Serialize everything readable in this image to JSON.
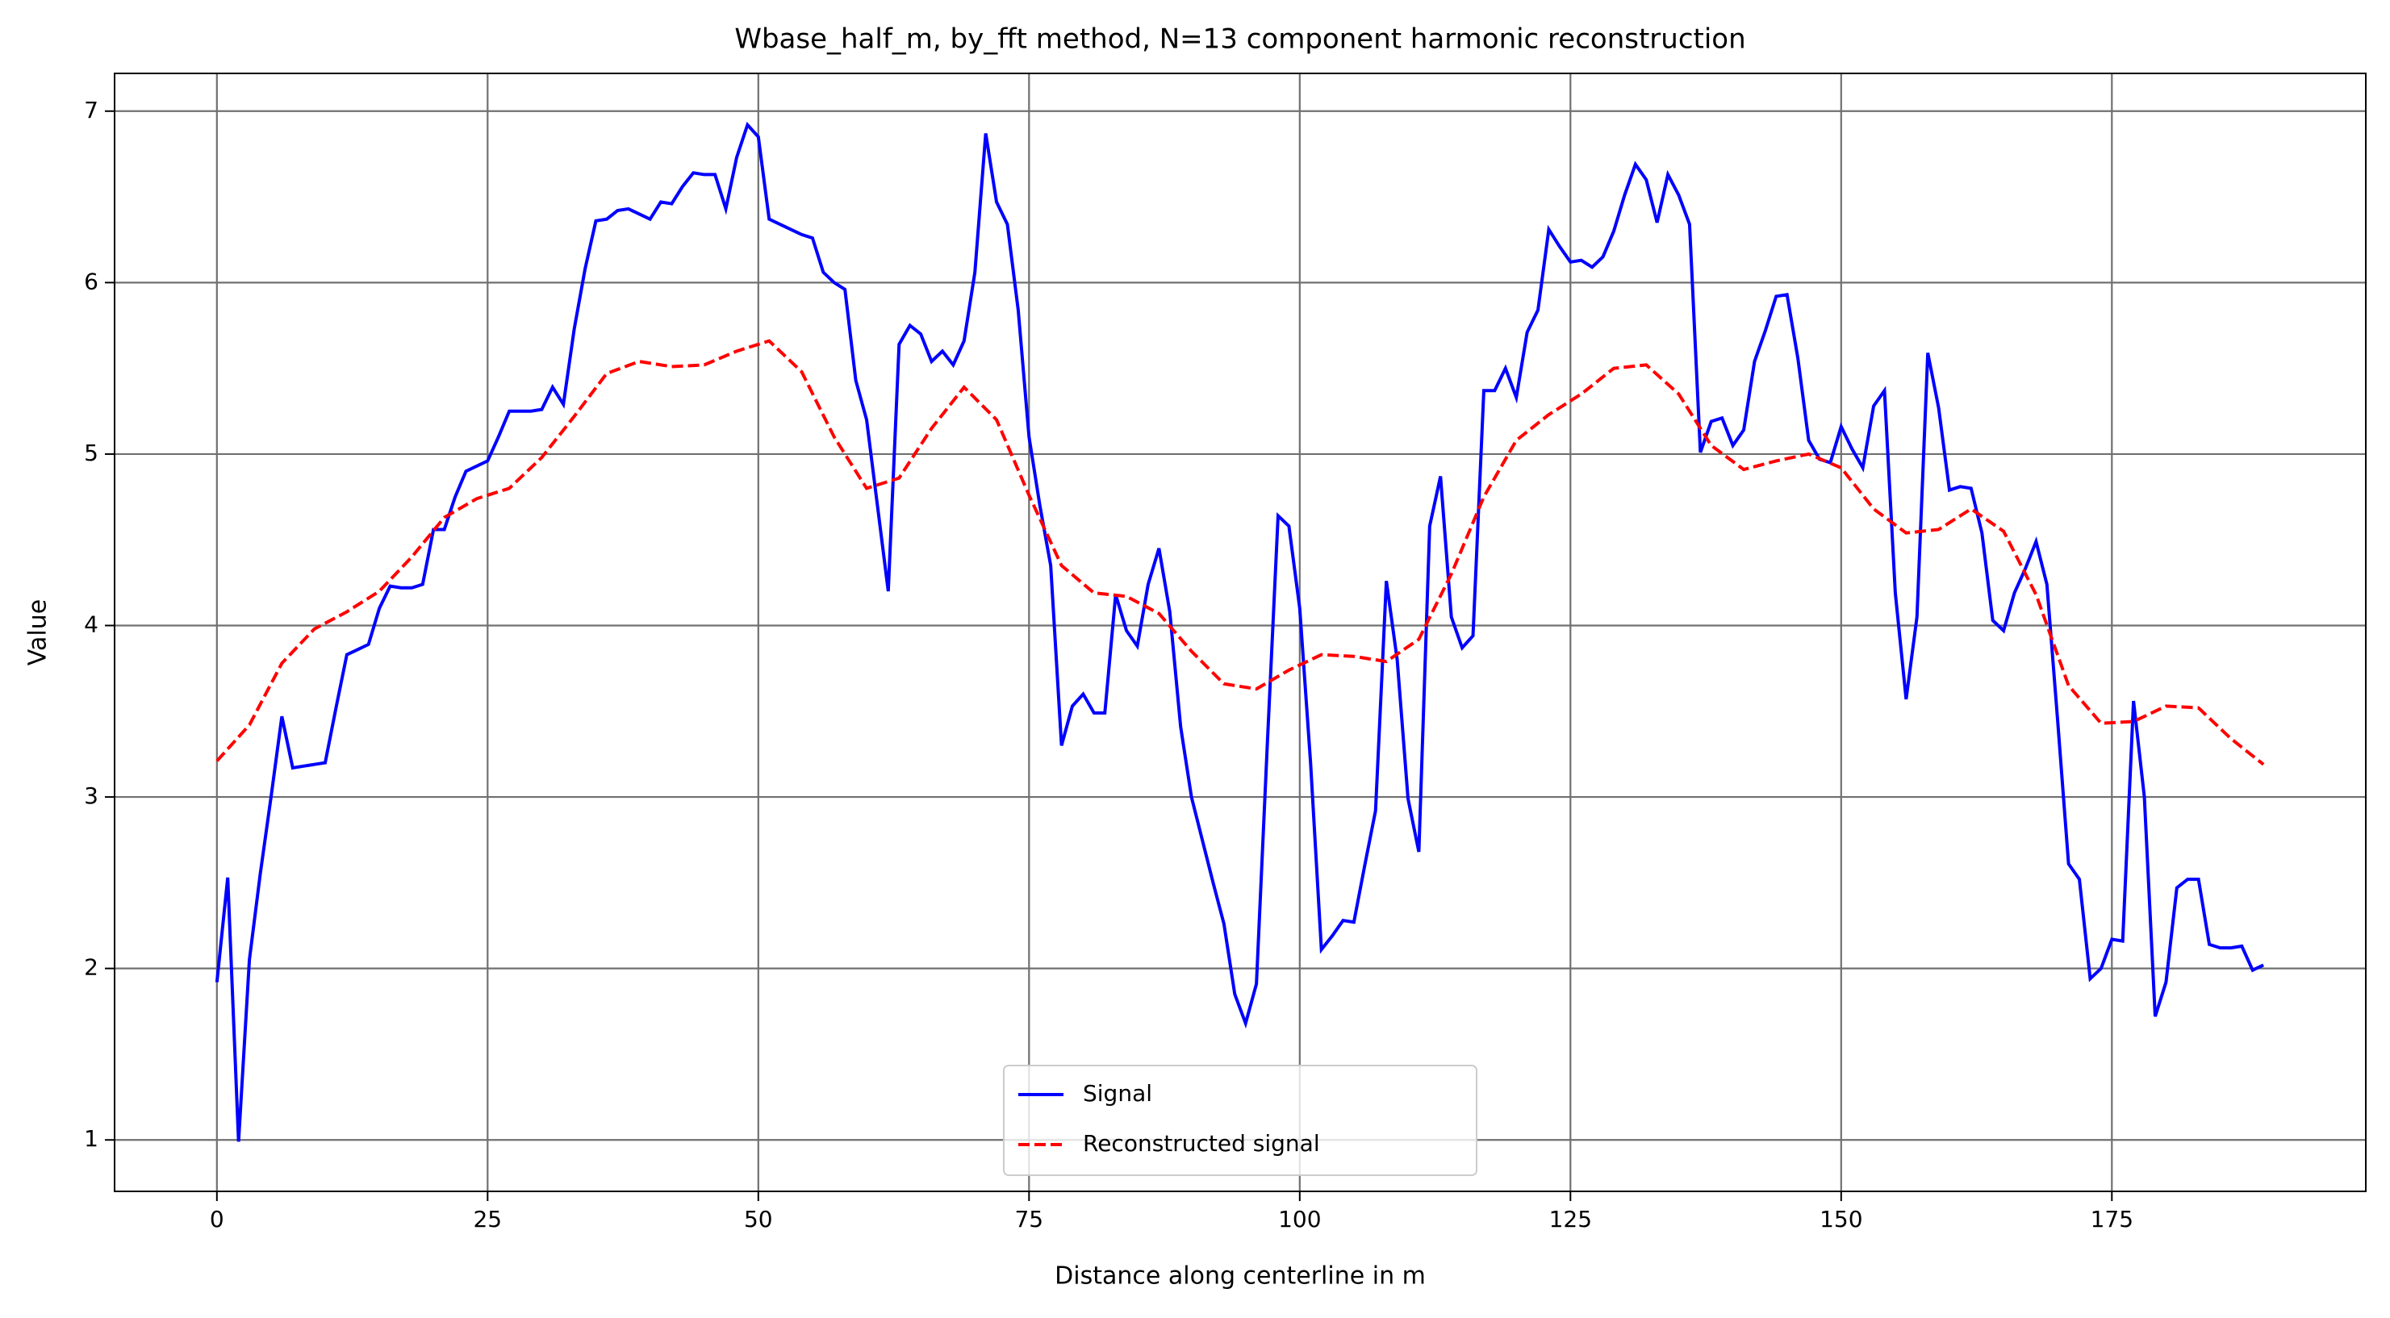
{
  "chart_data": {
    "type": "line",
    "title": "Wbase_half_m, by_fft method, N=13 component harmonic reconstruction",
    "xlabel": "Distance along centerline in m",
    "ylabel": "Value",
    "xlim": [
      -9.45,
      198.45
    ],
    "ylim": [
      0.7,
      7.22
    ],
    "xticks": [
      0,
      25,
      50,
      75,
      100,
      125,
      150,
      175
    ],
    "yticks": [
      1,
      2,
      3,
      4,
      5,
      6,
      7
    ],
    "grid": true,
    "legend": "lower center",
    "series": [
      {
        "name": "Signal",
        "color": "#0000ff",
        "dash": "solid",
        "x": [
          0,
          1,
          2,
          3,
          4,
          5,
          6,
          7,
          8,
          9,
          10,
          11,
          12,
          13,
          14,
          15,
          16,
          17,
          18,
          19,
          20,
          21,
          22,
          23,
          24,
          25,
          26,
          27,
          28,
          29,
          30,
          31,
          32,
          33,
          34,
          35,
          36,
          37,
          38,
          39,
          40,
          41,
          42,
          43,
          44,
          45,
          46,
          47,
          48,
          49,
          50,
          51,
          52,
          53,
          54,
          55,
          56,
          57,
          58,
          59,
          60,
          61,
          62,
          63,
          64,
          65,
          66,
          67,
          68,
          69,
          70,
          71,
          72,
          73,
          74,
          75,
          76,
          77,
          78,
          79,
          80,
          81,
          82,
          83,
          84,
          85,
          86,
          87,
          88,
          89,
          90,
          91,
          92,
          93,
          94,
          95,
          96,
          97,
          98,
          99,
          100,
          101,
          102,
          103,
          104,
          105,
          106,
          107,
          108,
          109,
          110,
          111,
          112,
          113,
          114,
          115,
          116,
          117,
          118,
          119,
          120,
          121,
          122,
          123,
          124,
          125,
          126,
          127,
          128,
          129,
          130,
          131,
          132,
          133,
          134,
          135,
          136,
          137,
          138,
          139,
          140,
          141,
          142,
          143,
          144,
          145,
          146,
          147,
          148,
          149,
          150,
          151,
          152,
          153,
          154,
          155,
          156,
          157,
          158,
          159,
          160,
          161,
          162,
          163,
          164,
          165,
          166,
          167,
          168,
          169,
          170,
          171,
          172,
          173,
          174,
          175,
          176,
          177,
          178,
          179,
          180,
          181,
          182,
          183,
          184,
          185,
          186,
          187,
          188,
          189
        ],
        "values": [
          1.92,
          2.53,
          0.99,
          2.05,
          2.55,
          3.0,
          3.47,
          3.17,
          3.18,
          3.19,
          3.2,
          3.52,
          3.83,
          3.86,
          3.89,
          4.1,
          4.23,
          4.22,
          4.22,
          4.24,
          4.56,
          4.56,
          4.75,
          4.9,
          4.93,
          4.96,
          5.1,
          5.25,
          5.25,
          5.25,
          5.26,
          5.39,
          5.29,
          5.73,
          6.08,
          6.36,
          6.37,
          6.42,
          6.43,
          6.4,
          6.37,
          6.47,
          6.46,
          6.56,
          6.64,
          6.63,
          6.63,
          6.43,
          6.73,
          6.92,
          6.85,
          6.37,
          6.34,
          6.31,
          6.28,
          6.26,
          6.06,
          6.0,
          5.96,
          5.43,
          5.2,
          4.7,
          4.2,
          5.64,
          5.75,
          5.7,
          5.54,
          5.6,
          5.52,
          5.66,
          6.06,
          6.87,
          6.47,
          6.34,
          5.84,
          5.1,
          4.7,
          4.35,
          3.3,
          3.53,
          3.6,
          3.49,
          3.49,
          4.18,
          3.97,
          3.88,
          4.24,
          4.45,
          4.08,
          3.41,
          3.0,
          2.75,
          2.5,
          2.26,
          1.85,
          1.68,
          1.91,
          3.3,
          4.64,
          4.58,
          4.1,
          3.2,
          2.11,
          2.19,
          2.28,
          2.27,
          2.6,
          2.92,
          4.26,
          3.8,
          2.99,
          2.68,
          4.58,
          4.87,
          4.05,
          3.87,
          3.94,
          5.37,
          5.37,
          5.5,
          5.33,
          5.71,
          5.84,
          6.31,
          6.21,
          6.12,
          6.13,
          6.09,
          6.15,
          6.3,
          6.51,
          6.69,
          6.6,
          6.35,
          6.63,
          6.51,
          6.34,
          5.01,
          5.19,
          5.21,
          5.05,
          5.14,
          5.54,
          5.72,
          5.92,
          5.93,
          5.56,
          5.08,
          4.97,
          4.95,
          5.16,
          5.03,
          4.92,
          5.28,
          5.37,
          4.19,
          3.57,
          4.05,
          5.59,
          5.27,
          4.79,
          4.81,
          4.8,
          4.54,
          4.03,
          3.97,
          4.19,
          4.33,
          4.49,
          4.24,
          3.44,
          2.61,
          2.52,
          1.94,
          2.0,
          2.17,
          2.16,
          3.56,
          3.0,
          1.72,
          1.92,
          2.47,
          2.52,
          2.52,
          2.14,
          2.12,
          2.12,
          2.13,
          1.99,
          2.02
        ]
      },
      {
        "name": "Reconstructed signal",
        "color": "#ff0000",
        "dash": "dashed",
        "x": [
          0,
          3,
          6,
          9,
          12,
          15,
          18,
          21,
          24,
          27,
          30,
          33,
          36,
          39,
          42,
          45,
          48,
          51,
          54,
          57,
          60,
          63,
          66,
          69,
          72,
          75,
          78,
          81,
          84,
          87,
          90,
          93,
          96,
          99,
          102,
          105,
          108,
          111,
          114,
          117,
          120,
          123,
          126,
          129,
          132,
          135,
          138,
          141,
          144,
          147,
          150,
          153,
          156,
          159,
          162,
          165,
          168,
          171,
          174,
          177,
          180,
          183,
          186,
          189
        ],
        "values": [
          3.21,
          3.42,
          3.78,
          3.98,
          4.08,
          4.2,
          4.4,
          4.63,
          4.74,
          4.8,
          4.98,
          5.22,
          5.47,
          5.54,
          5.51,
          5.52,
          5.6,
          5.66,
          5.48,
          5.1,
          4.8,
          4.86,
          5.15,
          5.39,
          5.2,
          4.76,
          4.35,
          4.19,
          4.17,
          4.07,
          3.85,
          3.66,
          3.63,
          3.74,
          3.83,
          3.82,
          3.79,
          3.92,
          4.3,
          4.75,
          5.08,
          5.23,
          5.35,
          5.5,
          5.52,
          5.35,
          5.05,
          4.91,
          4.96,
          5.0,
          4.92,
          4.68,
          4.54,
          4.56,
          4.68,
          4.55,
          4.18,
          3.65,
          3.43,
          3.44,
          3.53,
          3.52,
          3.34,
          3.19
        ]
      }
    ]
  }
}
